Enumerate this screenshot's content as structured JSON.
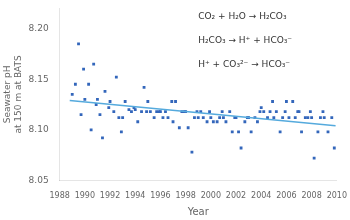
{
  "chart_data": {
    "type": "scatter",
    "xlabel": "Year",
    "ylabel": "Seawater pH\nat 150 m at BATS",
    "xlim": [
      1988,
      2010
    ],
    "ylim": [
      8.05,
      8.22
    ],
    "xticks": [
      1988,
      1990,
      1992,
      1994,
      1996,
      1998,
      2000,
      2002,
      2004,
      2006,
      2008,
      2010
    ],
    "yticks": [
      8.05,
      {
        "value": 8.1,
        "label": "8.10"
      },
      8.15,
      {
        "value": 8.2,
        "label": "8.20"
      }
    ],
    "grid": false,
    "annotations": [
      "CO₂ + H₂O → H₂CO₃",
      "H₂CO₃ → H⁺ + HCO₃⁻",
      "H⁺ + CO₃²⁻ → HCO₃⁻"
    ],
    "series": [
      {
        "type": "scatter",
        "color": "#3366bb",
        "marker": "square",
        "x": [
          1989.0,
          1989.25,
          1989.5,
          1989.7,
          1989.9,
          1990.0,
          1990.3,
          1990.5,
          1990.7,
          1990.9,
          1991.0,
          1991.2,
          1991.4,
          1991.6,
          1991.9,
          1992.0,
          1992.3,
          1992.5,
          1992.7,
          1992.9,
          1993.0,
          1993.2,
          1993.5,
          1993.7,
          1993.9,
          1994.0,
          1994.2,
          1994.5,
          1994.7,
          1994.9,
          1995.0,
          1995.2,
          1995.5,
          1995.7,
          1995.9,
          1996.0,
          1996.2,
          1996.4,
          1996.6,
          1996.9,
          1997.0,
          1997.2,
          1997.5,
          1997.7,
          1997.9,
          1998.0,
          1998.2,
          1998.5,
          1998.7,
          1998.9,
          1999.0,
          1999.2,
          1999.4,
          1999.7,
          1999.9,
          2000.0,
          2000.2,
          2000.5,
          2000.7,
          2000.9,
          2001.0,
          2001.2,
          2001.5,
          2001.7,
          2001.9,
          2002.0,
          2002.2,
          2002.4,
          2002.7,
          2002.9,
          2003.0,
          2003.2,
          2003.5,
          2003.7,
          2003.9,
          2004.0,
          2004.2,
          2004.5,
          2004.7,
          2004.9,
          2005.0,
          2005.2,
          2005.5,
          2005.7,
          2005.9,
          2006.0,
          2006.2,
          2006.5,
          2006.7,
          2006.9,
          2007.0,
          2007.2,
          2007.5,
          2007.7,
          2007.9,
          2008.0,
          2008.2,
          2008.5,
          2008.7,
          2008.9,
          2009.0,
          2009.3,
          2009.6,
          2009.8
        ],
        "values": [
          8.135,
          8.145,
          8.185,
          8.115,
          8.16,
          8.13,
          8.145,
          8.1,
          8.165,
          8.125,
          8.13,
          8.115,
          8.092,
          8.138,
          8.122,
          8.128,
          8.118,
          8.152,
          8.112,
          8.098,
          8.112,
          8.128,
          8.12,
          8.118,
          8.122,
          8.12,
          8.108,
          8.118,
          8.142,
          8.118,
          8.128,
          8.118,
          8.112,
          8.118,
          8.118,
          8.118,
          8.112,
          8.118,
          8.112,
          8.128,
          8.108,
          8.128,
          8.102,
          8.118,
          8.118,
          8.118,
          8.102,
          8.078,
          8.112,
          8.118,
          8.112,
          8.118,
          8.112,
          8.108,
          8.118,
          8.112,
          8.108,
          8.108,
          8.112,
          8.118,
          8.112,
          8.108,
          8.118,
          8.098,
          8.112,
          8.112,
          8.098,
          8.082,
          8.108,
          8.112,
          8.112,
          8.098,
          8.112,
          8.108,
          8.118,
          8.122,
          8.118,
          8.112,
          8.118,
          8.128,
          8.112,
          8.118,
          8.098,
          8.112,
          8.118,
          8.128,
          8.112,
          8.128,
          8.112,
          8.118,
          8.118,
          8.098,
          8.112,
          8.112,
          8.118,
          8.112,
          8.072,
          8.098,
          8.112,
          8.118,
          8.112,
          8.098,
          8.112,
          8.082
        ]
      },
      {
        "type": "line",
        "color": "#55aadd",
        "x": [
          1988.8,
          2009.9
        ],
        "values": [
          8.129,
          8.104
        ]
      }
    ]
  }
}
